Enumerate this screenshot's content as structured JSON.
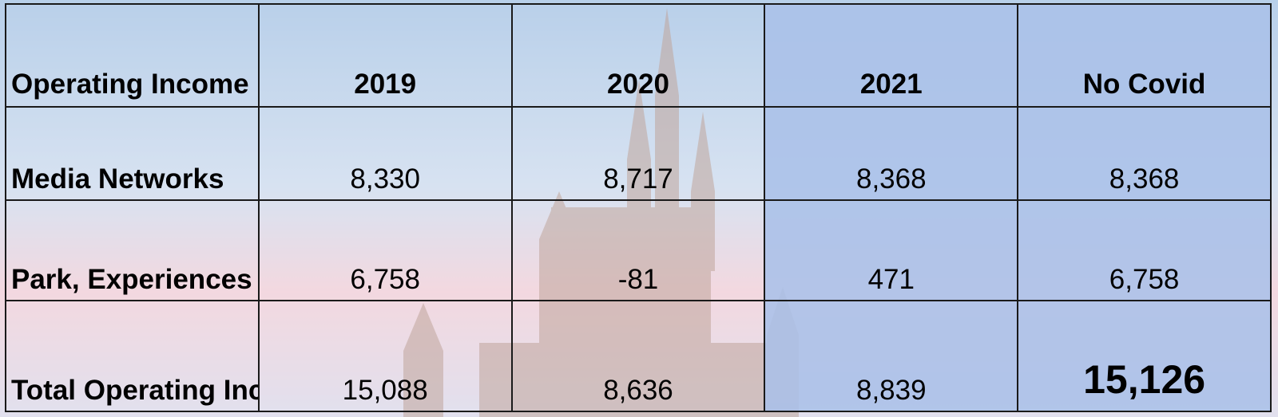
{
  "chart_data": {
    "type": "table",
    "columns": [
      "Operating Income (loss)",
      "2019",
      "2020",
      "2021",
      "No Covid"
    ],
    "rows": [
      {
        "label": "Media Networks",
        "values": [
          "8,330",
          "8,717",
          "8,368",
          "8,368"
        ]
      },
      {
        "label": "Park, Experiences and Products",
        "values": [
          "6,758",
          "-81",
          "471",
          "6,758"
        ]
      },
      {
        "label": "Total Operating Income",
        "values": [
          "15,088",
          "8,636",
          "8,839",
          "15,126"
        ]
      }
    ],
    "highlight_columns": [
      "2021",
      "No Covid"
    ],
    "highlight_color": "#aec2e8"
  }
}
